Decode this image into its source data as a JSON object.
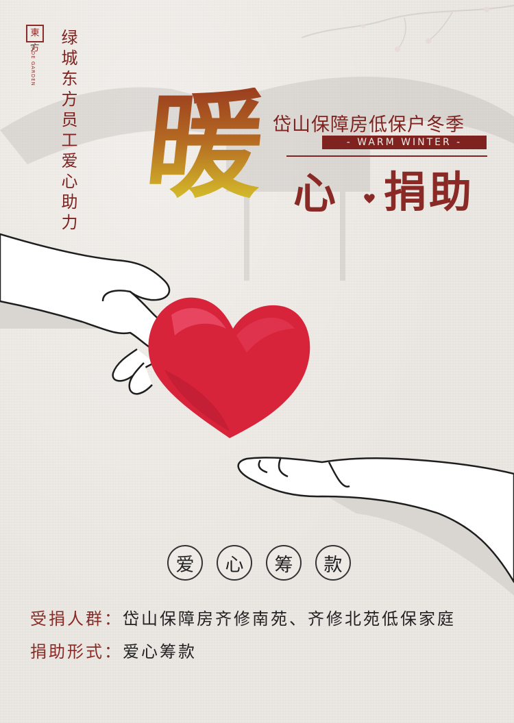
{
  "logo": {
    "seal": "東方",
    "sub": "JADE GARDEN"
  },
  "vertical_title": "绿城东方员工爱心助力",
  "subtitle": "岱山保障房低保户冬季",
  "ribbon": "- WARM WINTER -",
  "headline": {
    "warm": "暖",
    "heart": "心",
    "help": "捐助"
  },
  "colors": {
    "accent": "#7e2320",
    "heart": "#d9243c",
    "background": "#ece8e3"
  },
  "fundraising": [
    "爱",
    "心",
    "筹",
    "款"
  ],
  "info": {
    "recipients_label": "受捐人群：",
    "recipients_value": "岱山保障房齐修南苑、齐修北苑低保家庭",
    "form_label": "捐助形式：",
    "form_value": "爱心筹款"
  }
}
